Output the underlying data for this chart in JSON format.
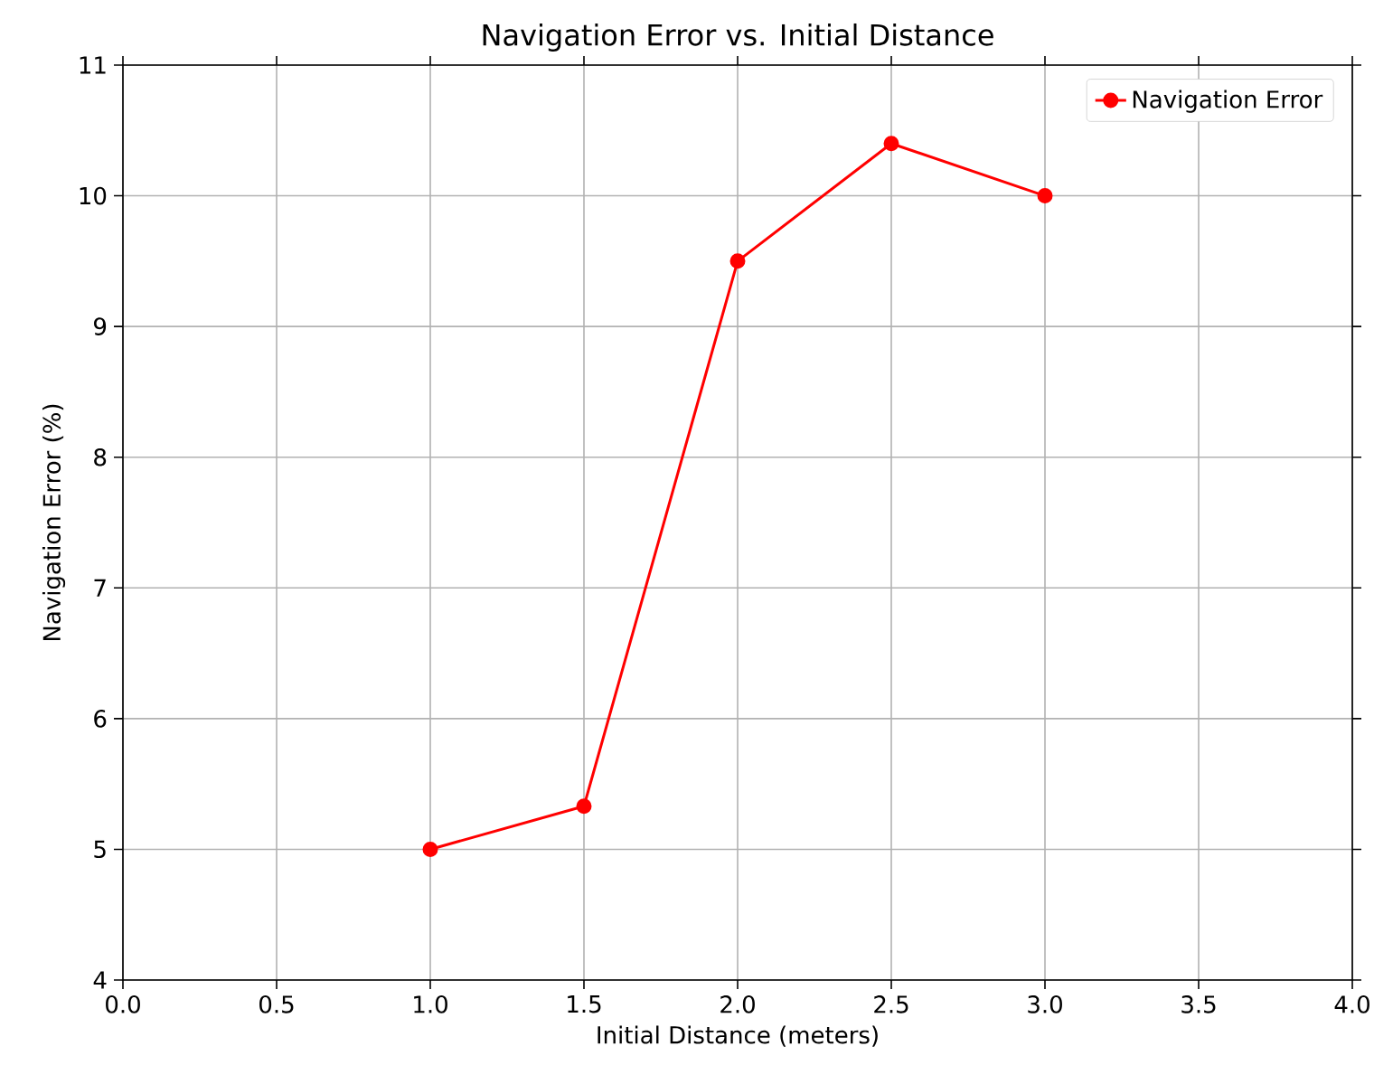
{
  "chart_data": {
    "type": "line",
    "title": "Navigation Error vs. Initial Distance",
    "xlabel": "Initial Distance (meters)",
    "ylabel": "Navigation Error (%)",
    "x": [
      1.0,
      1.5,
      2.0,
      2.5,
      3.0
    ],
    "series": [
      {
        "name": "Navigation Error",
        "color": "#ff0000",
        "values": [
          5.0,
          5.33,
          9.5,
          10.4,
          10.0
        ]
      }
    ],
    "xlim": [
      0.0,
      4.0
    ],
    "xticks": [
      {
        "value": 0,
        "label": "0.0"
      },
      0.5,
      {
        "value": 1,
        "label": "1.0"
      },
      1.5,
      {
        "value": 2,
        "label": "2.0"
      },
      2.5,
      {
        "value": 3,
        "label": "3.0"
      },
      3.5,
      {
        "value": 4,
        "label": "4.0"
      }
    ],
    "ylim": [
      4,
      11
    ],
    "yticks": [
      4,
      5,
      6,
      7,
      8,
      9,
      10,
      11
    ],
    "grid": true,
    "legend": "top right",
    "marker": "circle",
    "line_style": "solid"
  }
}
